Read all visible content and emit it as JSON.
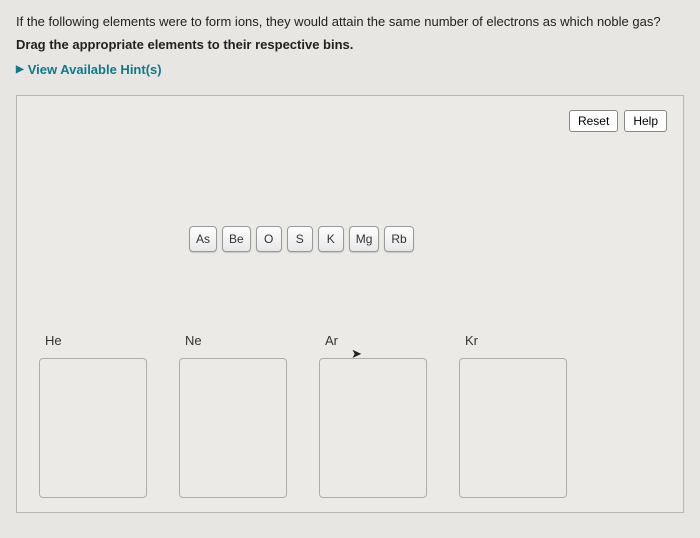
{
  "question": {
    "line1": "If the following elements were to form ions, they would attain the same number of electrons as which noble gas?",
    "line2": "Drag the appropriate elements to their respective bins.",
    "hints_label": "View Available Hint(s)"
  },
  "buttons": {
    "reset": "Reset",
    "help": "Help"
  },
  "elements": [
    "As",
    "Be",
    "O",
    "S",
    "K",
    "Mg",
    "Rb"
  ],
  "bins": [
    "He",
    "Ne",
    "Ar",
    "Kr"
  ],
  "colors": {
    "page_bg": "#e8e6e3",
    "panel_border": "#b8b6b3",
    "accent": "#0d7a8a",
    "chip_border": "#999",
    "bin_border": "#b0aeab"
  }
}
